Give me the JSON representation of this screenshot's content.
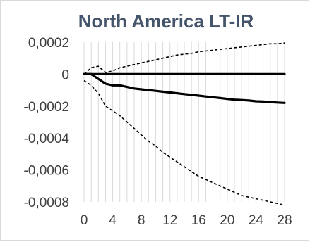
{
  "chart_data": {
    "type": "line",
    "title": "North America LT-IR",
    "xlabel": "",
    "ylabel": "",
    "x": [
      0,
      1,
      2,
      3,
      4,
      5,
      6,
      7,
      8,
      9,
      10,
      11,
      12,
      13,
      14,
      15,
      16,
      17,
      18,
      19,
      20,
      21,
      22,
      23,
      24,
      25,
      26,
      27,
      28
    ],
    "xlim": [
      0,
      28
    ],
    "ylim": [
      -0.0008,
      0.0002
    ],
    "x_ticks": [
      "0",
      "4",
      "8",
      "12",
      "16",
      "20",
      "24",
      "28"
    ],
    "x_tick_values": [
      0,
      4,
      8,
      12,
      16,
      20,
      24,
      28
    ],
    "y_ticks": [
      "0,0002",
      "0",
      "-0,0002",
      "-0,0004",
      "-0,0006",
      "-0,0008"
    ],
    "y_tick_values": [
      0.0002,
      0,
      -0.0002,
      -0.0004,
      -0.0006,
      -0.0008
    ],
    "grid": "vertical",
    "legend": "none",
    "colors": {
      "line": "#000000",
      "grid": "#d9d9d9",
      "title": "#44546a",
      "tick_text": "#404040"
    },
    "series": [
      {
        "style": "solid-thick",
        "values": [
          0,
          0,
          0,
          0,
          0,
          0,
          0,
          0,
          0,
          0,
          0,
          0,
          0,
          0,
          0,
          0,
          0,
          0,
          0,
          0,
          0,
          0,
          0,
          0,
          0,
          0,
          0,
          0,
          0
        ]
      },
      {
        "style": "solid-thick",
        "values": [
          0,
          0,
          -3e-05,
          -6e-05,
          -7e-05,
          -7e-05,
          -8e-05,
          -9e-05,
          -9.5e-05,
          -0.0001,
          -0.000105,
          -0.00011,
          -0.000115,
          -0.00012,
          -0.000125,
          -0.00013,
          -0.000135,
          -0.00014,
          -0.000145,
          -0.00015,
          -0.000155,
          -0.00016,
          -0.000162,
          -0.000165,
          -0.00017,
          -0.000172,
          -0.000175,
          -0.000178,
          -0.00018
        ]
      },
      {
        "style": "dashed",
        "values": [
          0,
          4e-05,
          5e-05,
          1e-05,
          2e-05,
          4e-05,
          5e-05,
          6e-05,
          7e-05,
          8e-05,
          9e-05,
          0.0001,
          0.00011,
          0.00012,
          0.000125,
          0.00013,
          0.00014,
          0.000145,
          0.00015,
          0.000155,
          0.00016,
          0.000165,
          0.00017,
          0.000175,
          0.00018,
          0.000185,
          0.00019,
          0.00019,
          0.000195
        ]
      },
      {
        "style": "dashed",
        "values": [
          -4e-05,
          -7e-05,
          -0.00012,
          -0.0002,
          -0.00023,
          -0.00026,
          -0.0003,
          -0.00034,
          -0.00038,
          -0.00042,
          -0.00045,
          -0.00049,
          -0.00052,
          -0.00055,
          -0.00058,
          -0.00061,
          -0.00064,
          -0.00066,
          -0.00068,
          -0.0007,
          -0.00072,
          -0.00074,
          -0.00076,
          -0.00077,
          -0.00078,
          -0.00079,
          -0.0008,
          -0.00081,
          -0.00082
        ]
      }
    ]
  }
}
